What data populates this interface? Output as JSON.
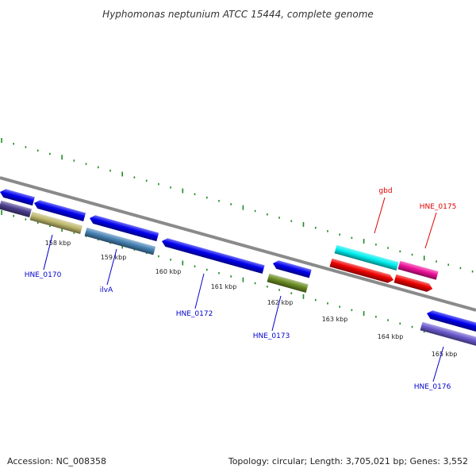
{
  "title": "Hyphomonas neptunium ATCC 15444, complete genome",
  "footer": {
    "accession": "Accession: NC_008358",
    "summary": "Topology: circular; Length: 3,705,021 bp; Genes: 3,552"
  },
  "colors": {
    "backbone": "#8a8a8a",
    "tick": "#1f8a1f",
    "label_red": "#e00000",
    "label_blue": "#0000cc"
  },
  "tick_labels": [
    "158 kbp",
    "159 kbp",
    "160 kbp",
    "161 kbp",
    "162 kbp",
    "163 kbp",
    "164 kbp",
    "165 kbp"
  ],
  "genes": [
    {
      "color": "#0000ee",
      "dir": "left"
    },
    {
      "color": "#0000ee",
      "dir": "left"
    },
    {
      "color": "#0000ee",
      "dir": "left"
    },
    {
      "color": "#0000ee",
      "dir": "left"
    },
    {
      "color": "#00eeee",
      "dir": "none"
    },
    {
      "color": "#ee1199",
      "dir": "none"
    },
    {
      "color": "#0000ee",
      "dir": "left"
    },
    {
      "color": "#4b3f8f",
      "dir": "none"
    },
    {
      "color": "#bdb76b",
      "dir": "none"
    },
    {
      "color": "#4682b4",
      "dir": "none"
    },
    {
      "color": "#0000ee",
      "dir": "left"
    },
    {
      "color": "#6b8e23",
      "dir": "none"
    },
    {
      "color": "#ee0000",
      "dir": "right"
    },
    {
      "color": "#ee0000",
      "dir": "right"
    },
    {
      "color": "#6a5acd",
      "dir": "none"
    }
  ],
  "gene_labels": [
    {
      "text": "gbd",
      "color": "#e00000"
    },
    {
      "text": "HNE_0175",
      "color": "#e00000"
    },
    {
      "text": "HNE_0170",
      "color": "#0000cc"
    },
    {
      "text": "ilvA",
      "color": "#0000cc"
    },
    {
      "text": "HNE_0172",
      "color": "#0000cc"
    },
    {
      "text": "HNE_0173",
      "color": "#0000cc"
    },
    {
      "text": "HNE_0176",
      "color": "#0000cc"
    }
  ]
}
